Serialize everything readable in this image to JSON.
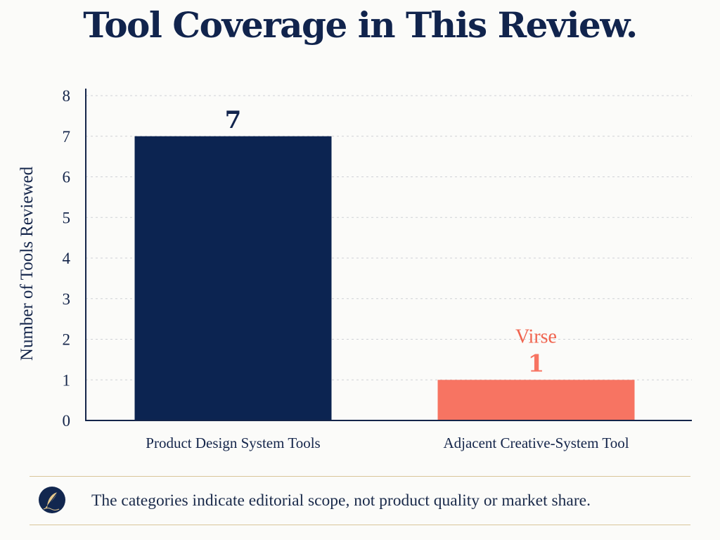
{
  "chart_data": {
    "type": "bar",
    "title": "Tool Coverage in This Review.",
    "ylabel": "Number of Tools Reviewed",
    "xlabel": "",
    "ylim": [
      0,
      8
    ],
    "yticks": [
      "0",
      "1",
      "2",
      "3",
      "4",
      "5",
      "6",
      "7",
      "8"
    ],
    "grid": true,
    "categories": [
      "Product Design System Tools",
      "Adjacent Creative-System Tool"
    ],
    "values": [
      7,
      1
    ],
    "value_labels": [
      "7",
      "1"
    ],
    "colors": [
      "#0c2451",
      "#f77462"
    ],
    "annotations": [
      {
        "category_index": 1,
        "text": "Virse",
        "color": "#f0644f"
      }
    ]
  },
  "footnote": {
    "icon": "quill-icon",
    "text": "The categories indicate editorial scope, not product quality or market share."
  }
}
